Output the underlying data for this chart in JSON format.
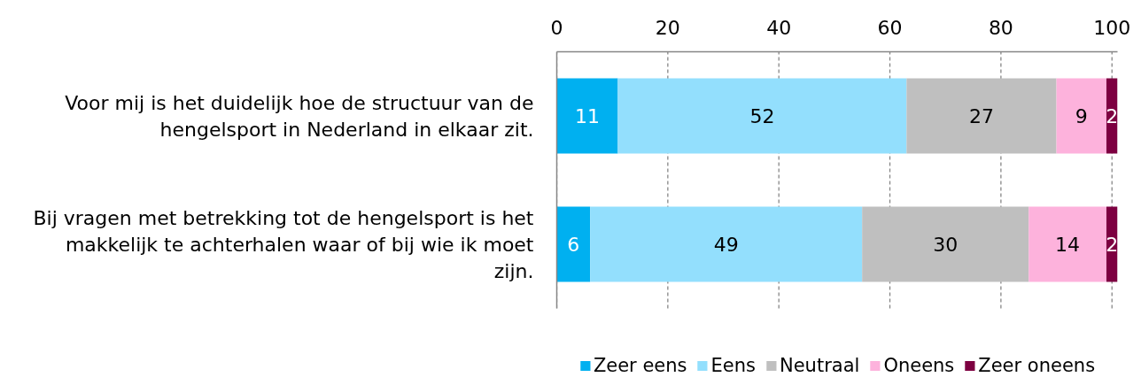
{
  "chart_data": {
    "type": "bar",
    "orientation": "horizontal",
    "stacked": true,
    "categories": [
      "Voor mij is het duidelijk hoe de structuur van de hengelsport in Nederland in elkaar zit.",
      "Bij vragen met betrekking tot de hengelsport is het makkelijk te achterhalen waar of bij wie ik moet zijn."
    ],
    "series": [
      {
        "name": "Zeer eens",
        "color": "#00b0f0",
        "values": [
          11,
          6
        ]
      },
      {
        "name": "Eens",
        "color": "#93dffd",
        "values": [
          52,
          49
        ]
      },
      {
        "name": "Neutraal",
        "color": "#bfbfbf",
        "values": [
          27,
          30
        ]
      },
      {
        "name": "Oneens",
        "color": "#fdb2dc",
        "values": [
          9,
          14
        ]
      },
      {
        "name": "Zeer oneens",
        "color": "#7d0041",
        "values": [
          2,
          2
        ]
      }
    ],
    "xlim": [
      0,
      101
    ],
    "xticks": [
      0,
      20,
      40,
      60,
      80,
      100
    ],
    "grid": "x",
    "legend": "bottom",
    "data_labels": true
  }
}
